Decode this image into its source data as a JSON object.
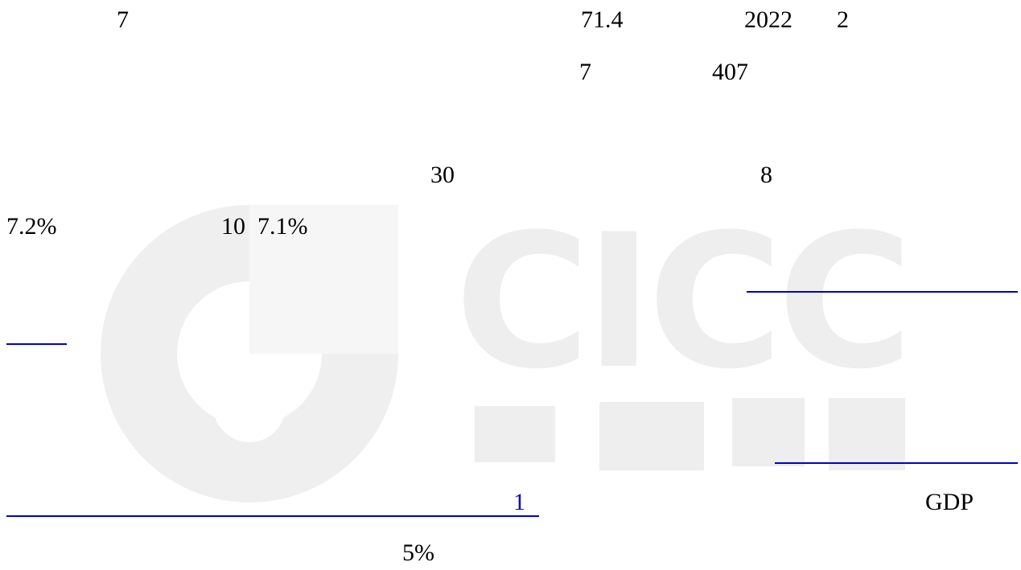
{
  "watermark": "CICC",
  "paragraphs": [
    {
      "fragments": [
        "7",
        "71.4",
        "2022",
        "2"
      ]
    },
    {
      "fragments": [
        "7",
        "407"
      ]
    },
    {
      "fragments": [
        "30",
        "8"
      ]
    },
    {
      "fragments": [
        "7.2%",
        "10",
        "7.1%"
      ]
    },
    {
      "fragments": [
        "1",
        "GDP"
      ]
    },
    {
      "fragments": [
        "5%"
      ]
    }
  ]
}
